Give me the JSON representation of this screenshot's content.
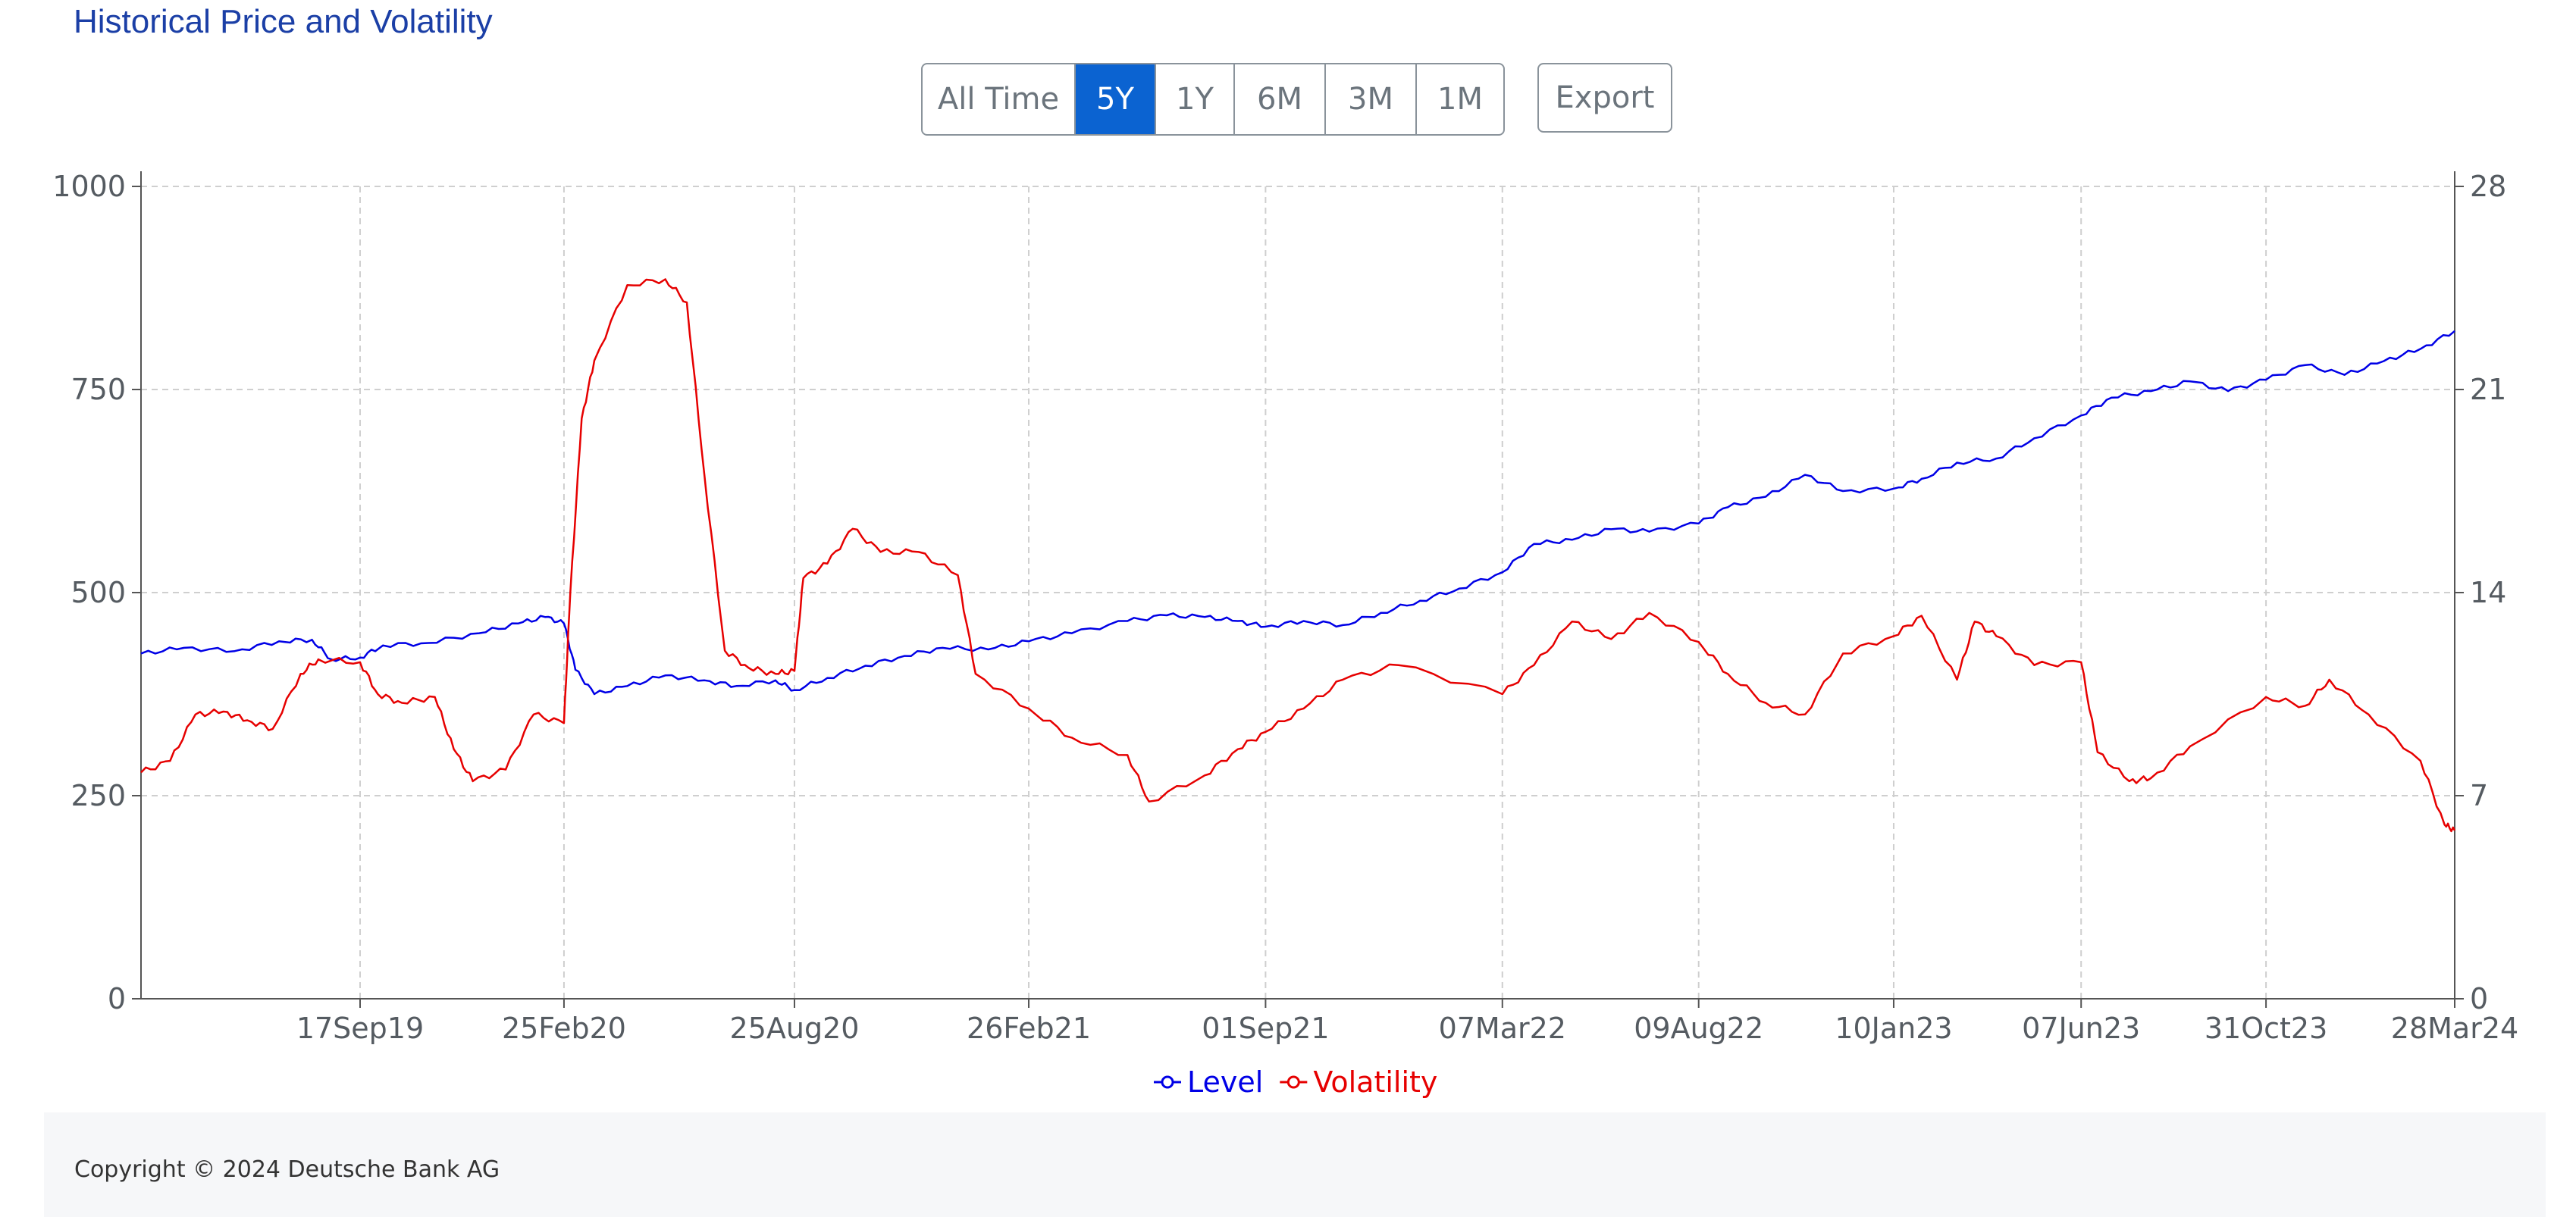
{
  "page": {
    "title": "Historical Price and Volatility"
  },
  "toolbar": {
    "ranges": [
      {
        "label": "All Time",
        "active": false
      },
      {
        "label": "5Y",
        "active": true
      },
      {
        "label": "1Y",
        "active": false
      },
      {
        "label": "6M",
        "active": false
      },
      {
        "label": "3M",
        "active": false
      },
      {
        "label": "1M",
        "active": false
      }
    ],
    "export_label": "Export"
  },
  "chart_data": {
    "type": "line",
    "title": "",
    "x_tick_labels": [
      "17Sep19",
      "25Feb20",
      "25Aug20",
      "26Feb21",
      "01Sep21",
      "07Mar22",
      "09Aug22",
      "10Jan23",
      "07Jun23",
      "31Oct23",
      "28Mar24"
    ],
    "y_left": {
      "ticks": [
        "0",
        "250",
        "500",
        "750",
        "1000"
      ],
      "lim": [
        0,
        1000
      ]
    },
    "y_right": {
      "ticks": [
        "0",
        "7",
        "14",
        "21",
        "28"
      ],
      "lim": [
        0,
        28
      ]
    },
    "grid": true,
    "legend_position": "bottom-center",
    "series": [
      {
        "name": "Level",
        "axis": "left",
        "color": "#0000e6",
        "points": [
          [
            "28Mar19",
            425
          ],
          [
            "01May19",
            432
          ],
          [
            "10Jun19",
            428
          ],
          [
            "15Jul19",
            440
          ],
          [
            "10Aug19",
            442
          ],
          [
            "25Aug19",
            418
          ],
          [
            "17Sep19",
            420
          ],
          [
            "05Oct19",
            435
          ],
          [
            "10Nov19",
            438
          ],
          [
            "20Dec19",
            450
          ],
          [
            "20Jan20",
            462
          ],
          [
            "10Feb20",
            470
          ],
          [
            "25Feb20",
            462
          ],
          [
            "05Mar20",
            405
          ],
          [
            "20Mar20",
            375
          ],
          [
            "15Apr20",
            385
          ],
          [
            "15May20",
            398
          ],
          [
            "15Jun20",
            392
          ],
          [
            "10Jul20",
            385
          ],
          [
            "10Aug20",
            392
          ],
          [
            "25Aug20",
            380
          ],
          [
            "20Sep20",
            395
          ],
          [
            "20Oct20",
            410
          ],
          [
            "20Nov20",
            422
          ],
          [
            "20Dec20",
            432
          ],
          [
            "25Jan21",
            430
          ],
          [
            "26Feb21",
            440
          ],
          [
            "01Apr21",
            450
          ],
          [
            "15May21",
            465
          ],
          [
            "15Jun21",
            472
          ],
          [
            "15Jul21",
            470
          ],
          [
            "10Aug21",
            465
          ],
          [
            "01Sep21",
            458
          ],
          [
            "01Oct21",
            465
          ],
          [
            "01Nov21",
            460
          ],
          [
            "01Dec21",
            475
          ],
          [
            "01Jan22",
            490
          ],
          [
            "01Feb22",
            505
          ],
          [
            "07Mar22",
            525
          ],
          [
            "01Apr22",
            560
          ],
          [
            "01May22",
            565
          ],
          [
            "01Jun22",
            578
          ],
          [
            "01Jul22",
            575
          ],
          [
            "09Aug22",
            585
          ],
          [
            "01Sep22",
            605
          ],
          [
            "01Oct22",
            618
          ],
          [
            "01Nov22",
            645
          ],
          [
            "01Dec22",
            625
          ],
          [
            "10Jan23",
            628
          ],
          [
            "01Feb23",
            640
          ],
          [
            "01Mar23",
            660
          ],
          [
            "01Apr23",
            665
          ],
          [
            "01May23",
            690
          ],
          [
            "07Jun23",
            718
          ],
          [
            "01Jul23",
            740
          ],
          [
            "01Aug23",
            748
          ],
          [
            "01Sep23",
            760
          ],
          [
            "01Oct23",
            748
          ],
          [
            "31Oct23",
            762
          ],
          [
            "01Dec23",
            780
          ],
          [
            "01Jan24",
            768
          ],
          [
            "01Feb24",
            785
          ],
          [
            "01Mar24",
            800
          ],
          [
            "28Mar24",
            822
          ]
        ]
      },
      {
        "name": "Volatility",
        "axis": "right",
        "color": "#e60000",
        "points": [
          [
            "28Mar19",
            7.8
          ],
          [
            "20Apr19",
            8.2
          ],
          [
            "10May19",
            9.8
          ],
          [
            "01Jun19",
            9.9
          ],
          [
            "20Jun19",
            9.6
          ],
          [
            "10Jul19",
            9.3
          ],
          [
            "01Aug19",
            11.2
          ],
          [
            "15Aug19",
            11.7
          ],
          [
            "17Sep19",
            11.6
          ],
          [
            "01Oct19",
            10.5
          ],
          [
            "20Oct19",
            10.2
          ],
          [
            "15Nov19",
            10.4
          ],
          [
            "30Nov19",
            8.6
          ],
          [
            "15Dec19",
            7.5
          ],
          [
            "10Jan20",
            7.9
          ],
          [
            "01Feb20",
            9.8
          ],
          [
            "25Feb20",
            9.5
          ],
          [
            "01Mar20",
            14.0
          ],
          [
            "10Mar20",
            20.0
          ],
          [
            "20Mar20",
            22.0
          ],
          [
            "15Apr20",
            24.6
          ],
          [
            "15May20",
            24.8
          ],
          [
            "01Jun20",
            24.0
          ],
          [
            "15Jun20",
            18.0
          ],
          [
            "01Jul20",
            12.0
          ],
          [
            "20Jul20",
            11.4
          ],
          [
            "10Aug20",
            11.2
          ],
          [
            "25Aug20",
            11.3
          ],
          [
            "01Sep20",
            14.5
          ],
          [
            "20Sep20",
            15.0
          ],
          [
            "10Oct20",
            16.2
          ],
          [
            "01Nov20",
            15.4
          ],
          [
            "01Dec20",
            15.4
          ],
          [
            "01Jan21",
            14.6
          ],
          [
            "15Jan21",
            11.2
          ],
          [
            "26Feb21",
            10.0
          ],
          [
            "01Apr21",
            9.0
          ],
          [
            "15May21",
            8.4
          ],
          [
            "01Jun21",
            6.8
          ],
          [
            "15Jul21",
            7.7
          ],
          [
            "10Aug21",
            8.6
          ],
          [
            "01Sep21",
            9.2
          ],
          [
            "01Oct21",
            10.0
          ],
          [
            "01Nov21",
            11.0
          ],
          [
            "15Dec21",
            11.5
          ],
          [
            "07Mar22",
            10.5
          ],
          [
            "01Apr22",
            11.5
          ],
          [
            "01May22",
            13.0
          ],
          [
            "01Jun22",
            12.4
          ],
          [
            "01Jul22",
            13.3
          ],
          [
            "09Aug22",
            12.3
          ],
          [
            "01Sep22",
            11.2
          ],
          [
            "01Oct22",
            10.2
          ],
          [
            "01Nov22",
            9.8
          ],
          [
            "01Dec22",
            11.9
          ],
          [
            "10Jan23",
            12.5
          ],
          [
            "01Feb23",
            13.2
          ],
          [
            "01Mar23",
            11.0
          ],
          [
            "15Mar23",
            13.0
          ],
          [
            "01Apr23",
            12.5
          ],
          [
            "01May23",
            11.5
          ],
          [
            "07Jun23",
            11.6
          ],
          [
            "20Jun23",
            8.5
          ],
          [
            "15Jul23",
            7.5
          ],
          [
            "01Aug23",
            7.6
          ],
          [
            "01Sep23",
            8.7
          ],
          [
            "31Oct23",
            10.4
          ],
          [
            "01Dec23",
            10.1
          ],
          [
            "20Dec23",
            11.0
          ],
          [
            "20Jan24",
            9.8
          ],
          [
            "01Mar24",
            8.2
          ],
          [
            "20Mar24",
            6.0
          ],
          [
            "28Mar24",
            5.8
          ]
        ]
      }
    ]
  },
  "footer": {
    "copyright": "Copyright © 2024 Deutsche Bank AG"
  }
}
